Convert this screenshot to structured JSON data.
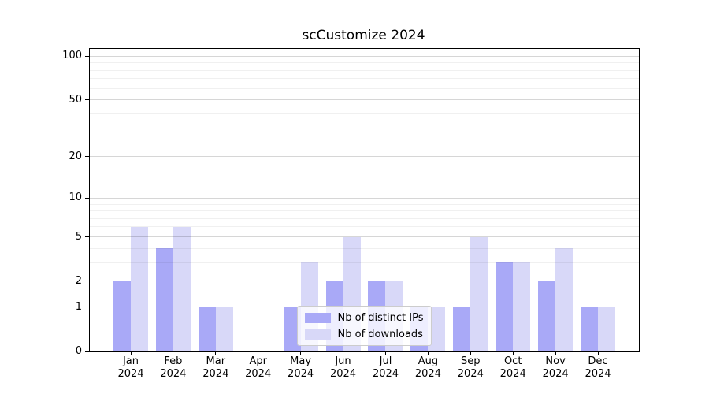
{
  "chart_data": {
    "type": "bar",
    "title": "scCustomize 2024",
    "categories": [
      "Jan",
      "Feb",
      "Mar",
      "Apr",
      "May",
      "Jun",
      "Jul",
      "Aug",
      "Sep",
      "Oct",
      "Nov",
      "Dec"
    ],
    "year_label": "2024",
    "series": [
      {
        "name": "Nb of distinct IPs",
        "color": "#a9a9f7",
        "values": [
          2,
          4,
          1,
          0,
          1,
          2,
          2,
          1,
          1,
          3,
          2,
          1
        ]
      },
      {
        "name": "Nb of downloads",
        "color": "#d8d8f8",
        "values": [
          6,
          6,
          1,
          0,
          3,
          5,
          2,
          1,
          5,
          3,
          4,
          1
        ]
      }
    ],
    "xlabel": "",
    "ylabel": "",
    "yscale": "log1p",
    "ylim": [
      0,
      112
    ],
    "y_major_ticks": [
      0,
      1,
      2,
      5,
      10,
      20,
      50,
      100
    ],
    "y_minor_ticks": [
      3,
      4,
      6,
      7,
      8,
      9,
      30,
      40,
      60,
      70,
      80,
      90
    ],
    "grid": "horizontal, major and minor, drawn above bars",
    "legend_position": "lower center"
  },
  "colors": {
    "background": "#ffffff",
    "spine": "#000000",
    "bar_distinct_ips": "#a9a9f7",
    "bar_downloads": "#d8d8f8",
    "legend_border": "#cccccc"
  }
}
